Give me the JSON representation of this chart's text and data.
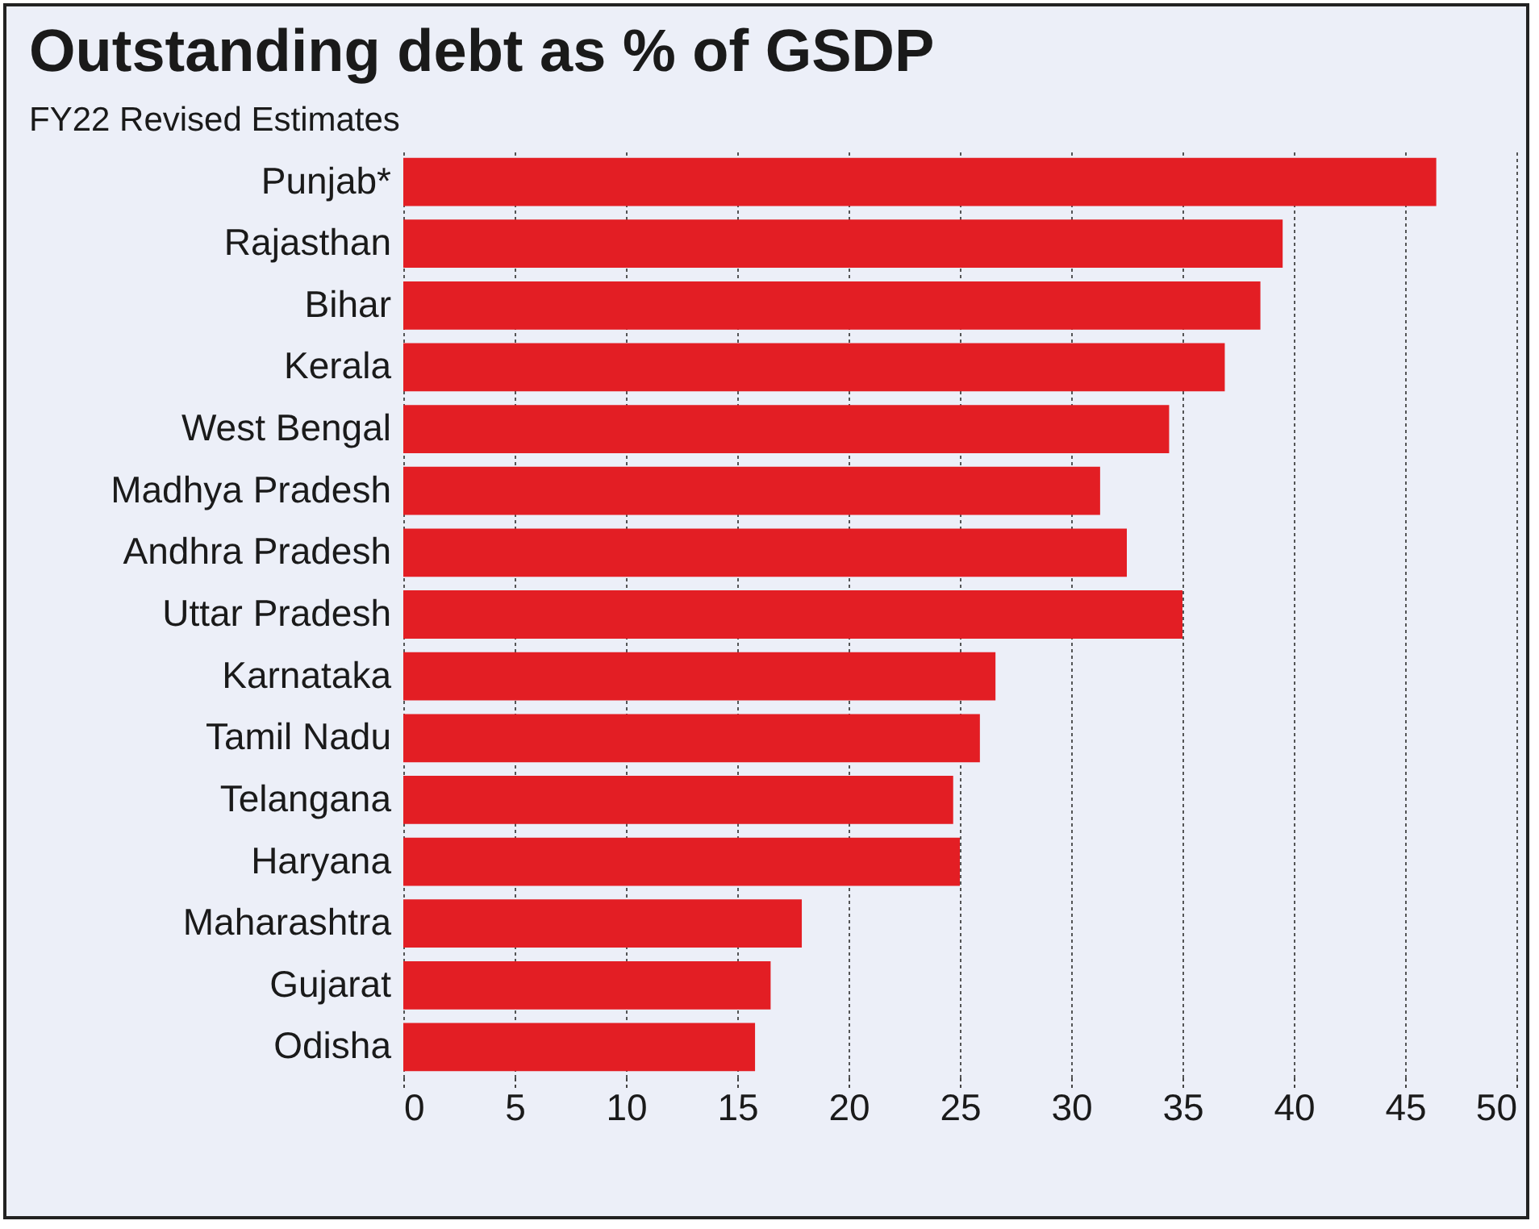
{
  "chart_data": {
    "type": "bar",
    "orientation": "horizontal",
    "title": "Outstanding debt as % of GSDP",
    "subtitle": "FY22 Revised Estimates",
    "categories": [
      "Punjab*",
      "Rajasthan",
      "Bihar",
      "Kerala",
      "West Bengal",
      "Madhya Pradesh",
      "Andhra Pradesh",
      "Uttar Pradesh",
      "Karnataka",
      "Tamil Nadu",
      "Telangana",
      "Haryana",
      "Maharashtra",
      "Gujarat",
      "Odisha"
    ],
    "values": [
      46.4,
      39.5,
      38.5,
      36.9,
      34.4,
      31.3,
      32.5,
      35.0,
      26.6,
      25.9,
      24.7,
      25.0,
      17.9,
      16.5,
      15.8
    ],
    "color": "#e31e24",
    "xlim": [
      0,
      50
    ],
    "xticks": [
      0,
      5,
      10,
      15,
      20,
      25,
      30,
      35,
      40,
      45,
      50
    ],
    "grid": "x"
  }
}
